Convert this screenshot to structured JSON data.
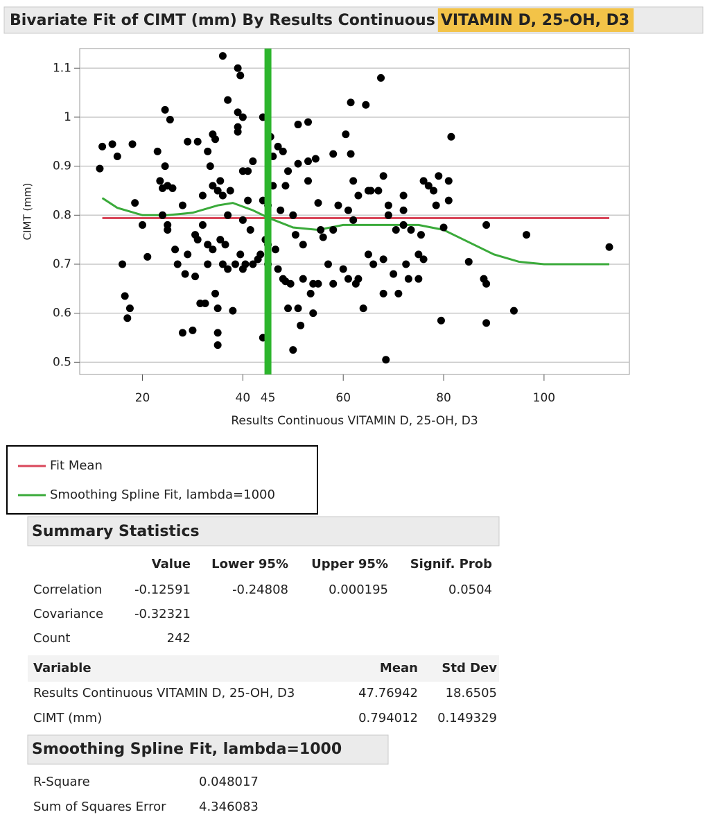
{
  "chart_data": {
    "type": "scatter",
    "title_parts": [
      "Bivariate Fit of CIMT (mm) By Results Continuous",
      "VITAMIN D, 25-OH, D3"
    ],
    "xlabel": "Results Continuous VITAMIN D, 25-OH, D3",
    "ylabel": "CIMT (mm)",
    "xlim": [
      7.5,
      117
    ],
    "ylim": [
      0.475,
      1.14
    ],
    "xticks": [
      20,
      40,
      60,
      80,
      100
    ],
    "yticks": [
      0.5,
      0.6,
      0.7,
      0.8,
      0.9,
      1,
      1.1
    ],
    "grid": true,
    "color": "#000000",
    "x": [
      11.5,
      12,
      14,
      15,
      16,
      16.5,
      17,
      17.5,
      18,
      18.5,
      20,
      21,
      23,
      23.5,
      24,
      24,
      24.5,
      24.5,
      25,
      25,
      25,
      25.5,
      26,
      26.5,
      27,
      28,
      28,
      28.5,
      29,
      29,
      30,
      30.5,
      30.5,
      31,
      31,
      31.5,
      32,
      32,
      32.5,
      33,
      33,
      33,
      33.5,
      34,
      34,
      34,
      34.5,
      34.5,
      35,
      35,
      35,
      35,
      35.5,
      35.5,
      36,
      36,
      36,
      36.5,
      37,
      37,
      37,
      37.5,
      38,
      38.5,
      39,
      39,
      39,
      39,
      39.5,
      39.5,
      40,
      40,
      40,
      40,
      40.5,
      41,
      41,
      41.5,
      42,
      42,
      43,
      43.5,
      44,
      44,
      44,
      44.5,
      45,
      45,
      45,
      45.5,
      46,
      46,
      46.5,
      47,
      47,
      47.5,
      48,
      48,
      48.5,
      48.5,
      49,
      49,
      49.5,
      50,
      50,
      50.5,
      51,
      51,
      51,
      51.5,
      52,
      52,
      53,
      53,
      53,
      53.5,
      54,
      54,
      54.5,
      55,
      55,
      55.5,
      56,
      57,
      58,
      58,
      58,
      59,
      60,
      60.5,
      61,
      61,
      61.5,
      61.5,
      62,
      62,
      62.5,
      63,
      63,
      64,
      64.5,
      65,
      65,
      65.5,
      66,
      67,
      67.5,
      68,
      68,
      68,
      68.5,
      69,
      69,
      70,
      70.5,
      71,
      72,
      72,
      72,
      72.5,
      73,
      73.5,
      75,
      75,
      75.5,
      76,
      76,
      77,
      78,
      78.5,
      79,
      79.5,
      80,
      81,
      81,
      81.5,
      85,
      88,
      88.5,
      88.5,
      88.5,
      94,
      96.5,
      113
    ],
    "values": [
      0.895,
      0.94,
      0.945,
      0.92,
      0.7,
      0.635,
      0.59,
      0.61,
      0.945,
      0.825,
      0.78,
      0.715,
      0.93,
      0.87,
      0.855,
      0.8,
      1.015,
      0.9,
      0.86,
      0.78,
      0.77,
      0.995,
      0.855,
      0.73,
      0.7,
      0.82,
      0.56,
      0.68,
      0.95,
      0.72,
      0.565,
      0.675,
      0.76,
      0.95,
      0.75,
      0.62,
      0.84,
      0.78,
      0.62,
      0.93,
      0.74,
      0.7,
      0.9,
      0.965,
      0.86,
      0.73,
      0.955,
      0.64,
      0.85,
      0.61,
      0.56,
      0.535,
      0.87,
      0.75,
      1.125,
      0.84,
      0.7,
      0.74,
      1.035,
      0.8,
      0.69,
      0.85,
      0.605,
      0.7,
      1.1,
      1.01,
      0.98,
      0.97,
      1.085,
      0.72,
      0.89,
      0.79,
      0.69,
      1,
      0.7,
      0.89,
      0.83,
      0.77,
      0.91,
      0.7,
      0.71,
      0.72,
      1,
      0.83,
      0.55,
      0.75,
      0.82,
      0.74,
      0.7,
      0.96,
      0.92,
      0.86,
      0.73,
      0.94,
      0.69,
      0.81,
      0.93,
      0.67,
      0.86,
      0.665,
      0.89,
      0.61,
      0.66,
      0.8,
      0.525,
      0.76,
      0.985,
      0.905,
      0.61,
      0.575,
      0.67,
      0.74,
      0.99,
      0.91,
      0.87,
      0.64,
      0.66,
      0.6,
      0.915,
      0.66,
      0.825,
      0.77,
      0.755,
      0.7,
      0.925,
      0.77,
      0.66,
      0.82,
      0.69,
      0.965,
      0.67,
      0.81,
      1.03,
      0.925,
      0.87,
      0.79,
      0.66,
      0.84,
      0.67,
      0.61,
      1.025,
      0.85,
      0.72,
      0.85,
      0.7,
      0.85,
      1.08,
      0.88,
      0.71,
      0.64,
      0.505,
      0.82,
      0.8,
      0.68,
      0.77,
      0.64,
      0.84,
      0.81,
      0.78,
      0.7,
      0.67,
      0.77,
      0.67,
      0.72,
      0.76,
      0.87,
      0.71,
      0.86,
      0.85,
      0.82,
      0.88,
      0.585,
      0.775,
      0.83,
      0.87,
      0.96,
      0.705,
      0.67,
      0.66,
      0.58,
      0.78,
      0.605,
      0.76,
      0.735
    ],
    "reference_line": {
      "value": 45,
      "color": "#2db52d"
    },
    "lines": [
      {
        "name": "Fit Mean",
        "color": "#d9475a",
        "value": 0.794012
      },
      {
        "name": "Smoothing Spline Fit, lambda=1000",
        "color": "#3aaa3a",
        "x": [
          12,
          15,
          20,
          25,
          30,
          35,
          38,
          42,
          45,
          50,
          55,
          60,
          65,
          70,
          75,
          80,
          85,
          90,
          95,
          100,
          113
        ],
        "values": [
          0.835,
          0.815,
          0.8,
          0.8,
          0.805,
          0.82,
          0.825,
          0.81,
          0.795,
          0.775,
          0.77,
          0.78,
          0.78,
          0.78,
          0.78,
          0.77,
          0.745,
          0.72,
          0.705,
          0.7,
          0.7
        ]
      }
    ]
  },
  "summary": {
    "title": "Summary Statistics",
    "headers": [
      "Value",
      "Lower 95%",
      "Upper 95%",
      "Signif. Prob"
    ],
    "rows": [
      {
        "label": "Correlation",
        "values": [
          -0.12591,
          -0.24808,
          0.000195,
          0.0504
        ]
      },
      {
        "label": "Covariance",
        "values": [
          -0.32321
        ]
      },
      {
        "label": "Count",
        "values": [
          242
        ]
      }
    ]
  },
  "variables": {
    "headers": [
      "Variable",
      "Mean",
      "Std Dev"
    ],
    "rows": [
      {
        "label": "Results Continuous VITAMIN D, 25-OH, D3",
        "values": [
          47.76942,
          18.6505
        ]
      },
      {
        "label": "CIMT (mm)",
        "values": [
          0.794012,
          0.149329
        ]
      }
    ]
  },
  "spline": {
    "title": "Smoothing Spline Fit, lambda=1000",
    "rows": [
      {
        "label": "R-Square",
        "value": 0.048017
      },
      {
        "label": "Sum of Squares Error",
        "value": 4.346083
      }
    ]
  }
}
